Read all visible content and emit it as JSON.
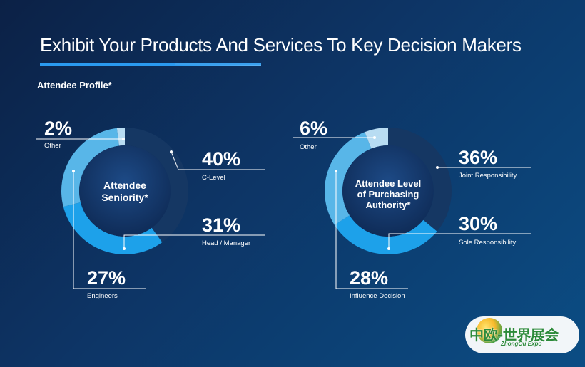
{
  "title": "Exhibit Your Products And Services To Key Decision Makers",
  "subtitle": "Attendee Profile*",
  "colors": {
    "dark": "#153763",
    "bright": "#1da1ea",
    "light": "#58b6e8",
    "pale": "#b8dcf2",
    "accent": "#2a9af0"
  },
  "chart_data": [
    {
      "type": "pie",
      "center_label": [
        "Attendee",
        "Seniority*"
      ],
      "categories": [
        "C-Level",
        "Head / Manager",
        "Engineers",
        "Other"
      ],
      "values": [
        40,
        31,
        27,
        2
      ],
      "labels": [
        "40%",
        "31%",
        "27%",
        "2%"
      ]
    },
    {
      "type": "pie",
      "center_label": [
        "Attendee Level",
        "of Purchasing",
        "Authority*"
      ],
      "categories": [
        "Joint Responsibility",
        "Sole Responsibility",
        "Influence Decision",
        "Other"
      ],
      "values": [
        36,
        30,
        28,
        6
      ],
      "labels": [
        "36%",
        "30%",
        "28%",
        "6%"
      ]
    }
  ],
  "logo": {
    "text": "中欧-世界展会",
    "sub": "ZhongOu Expo"
  }
}
